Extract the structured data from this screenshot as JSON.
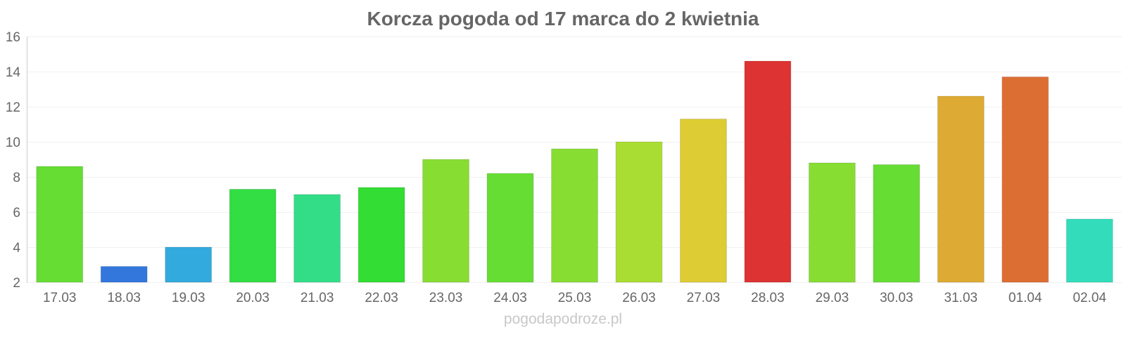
{
  "chart_data": {
    "type": "bar",
    "title": "Korcza pogoda od 17 marca do 2 kwietnia",
    "xlabel": "",
    "ylabel": "",
    "ylim": [
      2,
      16
    ],
    "yticks": [
      2,
      4,
      6,
      8,
      10,
      12,
      14,
      16
    ],
    "grid": true,
    "legend": "none",
    "categories": [
      "17.03",
      "18.03",
      "19.03",
      "20.03",
      "21.03",
      "22.03",
      "23.03",
      "24.03",
      "25.03",
      "26.03",
      "27.03",
      "28.03",
      "29.03",
      "30.03",
      "31.03",
      "01.04",
      "02.04"
    ],
    "values": [
      8.6,
      2.9,
      4.0,
      7.3,
      7.0,
      7.4,
      9.0,
      8.2,
      9.6,
      10.0,
      11.3,
      14.6,
      8.8,
      8.7,
      12.6,
      13.7,
      5.6
    ],
    "colors": [
      "#66dd33",
      "#3377dd",
      "#33aadd",
      "#33dd44",
      "#33dd88",
      "#33dd33",
      "#88dd33",
      "#66dd33",
      "#88dd33",
      "#aadd33",
      "#ddcc33",
      "#dd3333",
      "#88dd33",
      "#66dd33",
      "#ddaa33",
      "#dd6e33",
      "#33ddbb"
    ]
  },
  "watermark": "pogodapodroze.pl"
}
